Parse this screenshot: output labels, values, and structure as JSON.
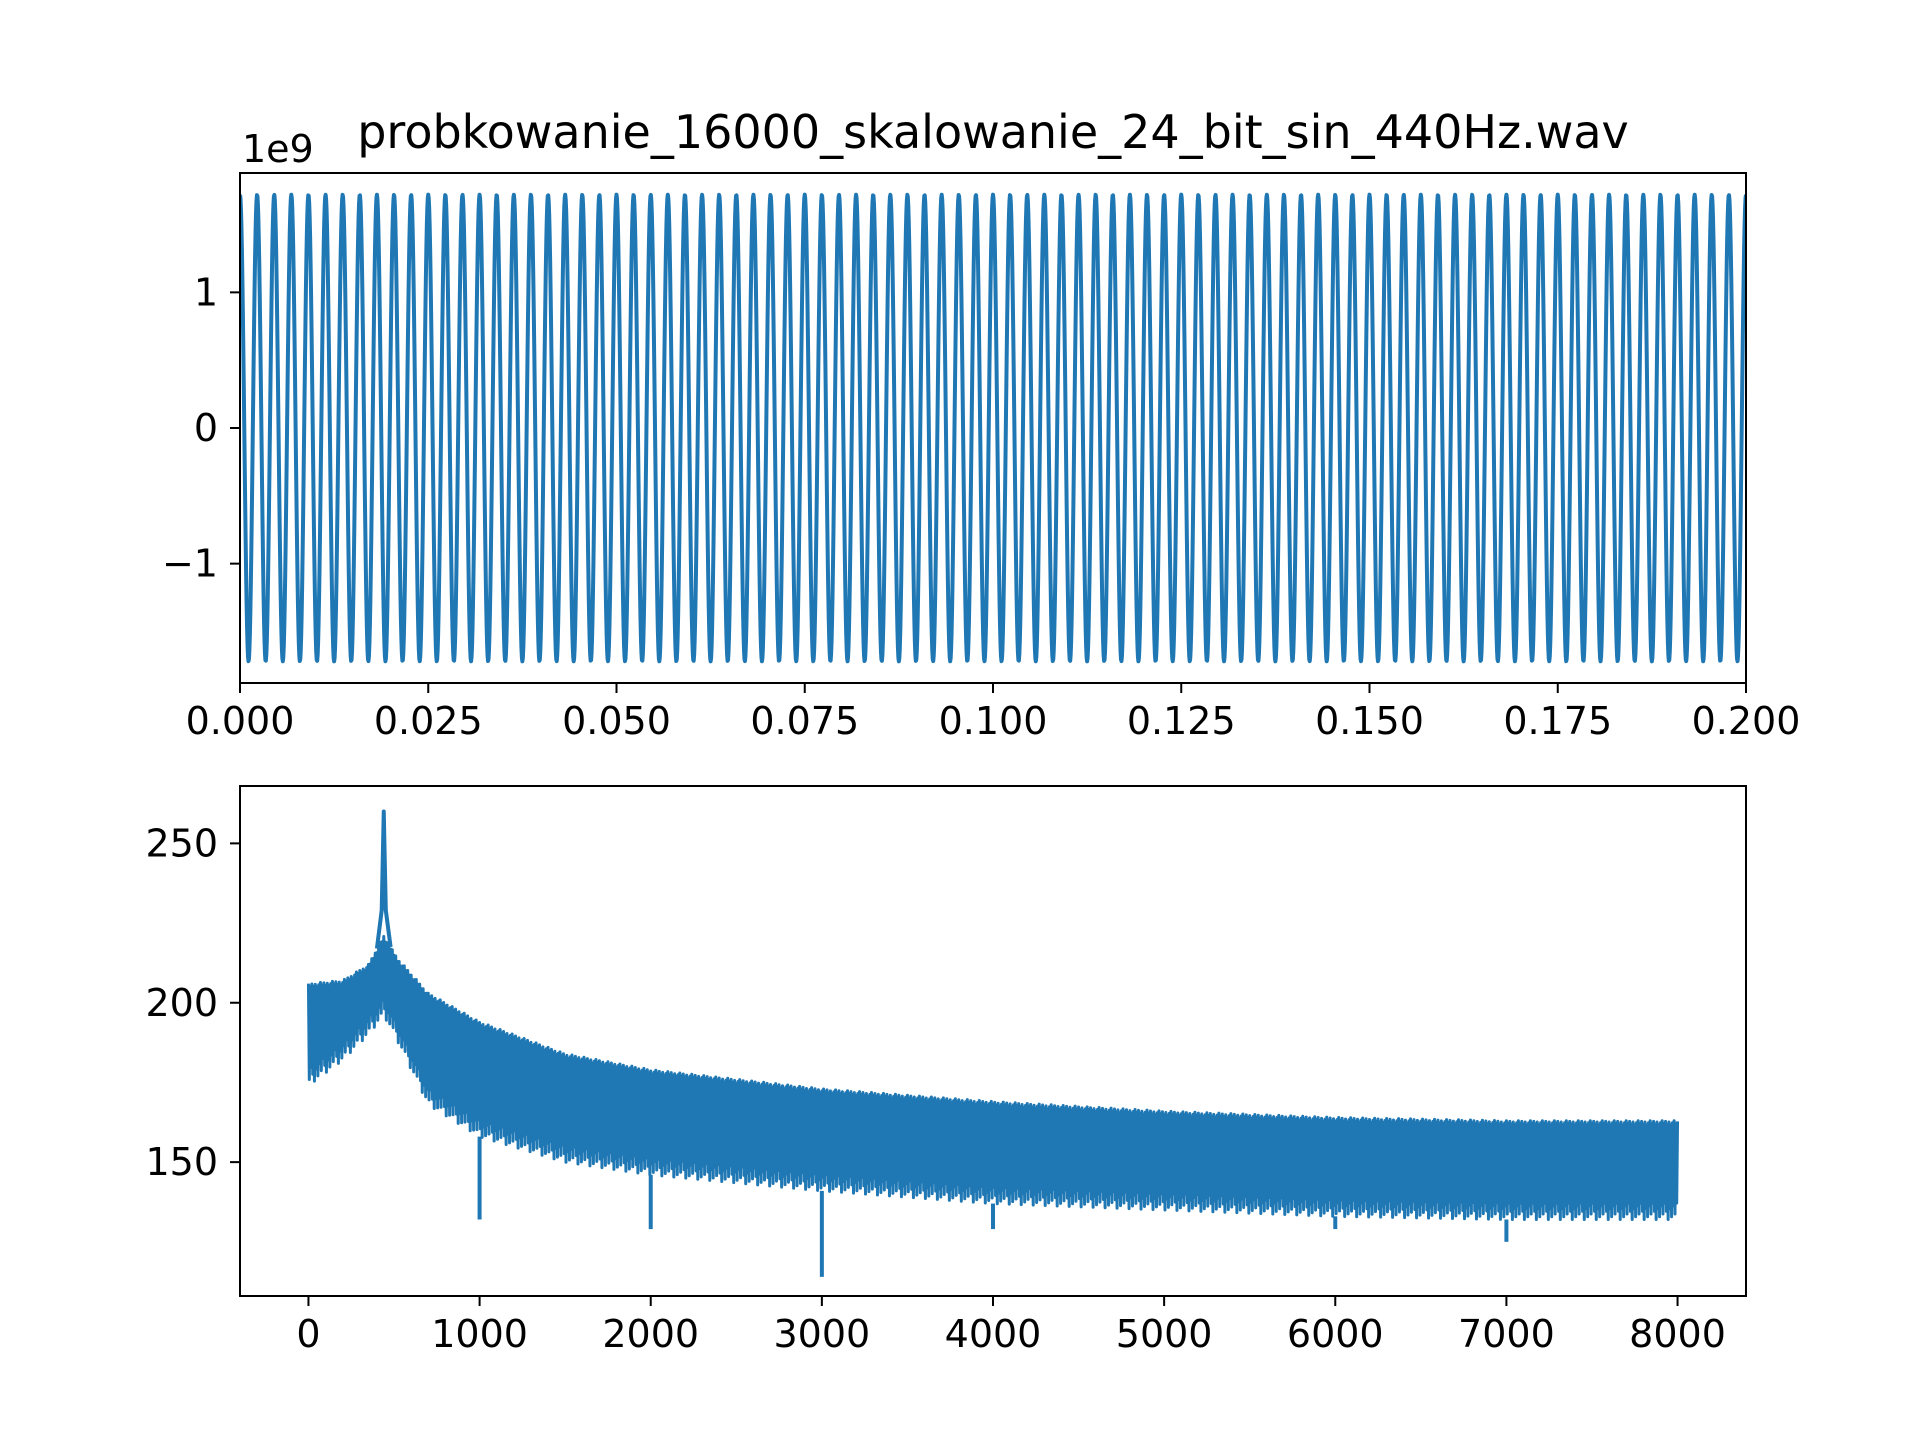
{
  "figure": {
    "title": "probkowanie_16000_skalowanie_24_bit_sin_440Hz.wav"
  },
  "colors": {
    "series": "#1f77b4",
    "axes": "#000000",
    "background": "#ffffff"
  },
  "chart_data": [
    {
      "type": "line",
      "title": "probkowanie_16000_skalowanie_24_bit_sin_440Hz.wav",
      "xlabel": "",
      "ylabel": "",
      "grid": false,
      "xlim": [
        0,
        0.2
      ],
      "ylim": [
        -1.88,
        1.88
      ],
      "y_offset_label": "1e9",
      "x_ticks": [
        {
          "value": 0.0,
          "label": "0.000"
        },
        {
          "value": 0.025,
          "label": "0.025"
        },
        {
          "value": 0.05,
          "label": "0.050"
        },
        {
          "value": 0.075,
          "label": "0.075"
        },
        {
          "value": 0.1,
          "label": "0.100"
        },
        {
          "value": 0.125,
          "label": "0.125"
        },
        {
          "value": 0.15,
          "label": "0.150"
        },
        {
          "value": 0.175,
          "label": "0.175"
        },
        {
          "value": 0.2,
          "label": "0.200"
        }
      ],
      "y_ticks": [
        {
          "value": -1,
          "label": "−1"
        },
        {
          "value": 0,
          "label": "0"
        },
        {
          "value": 1,
          "label": "1"
        }
      ],
      "signal": {
        "kind": "sine",
        "frequency_hz": 440,
        "sample_rate_hz": 16000,
        "amplitude": 1.72,
        "x_start": 0,
        "x_end": 0.2
      }
    },
    {
      "type": "line",
      "title": "",
      "xlabel": "",
      "ylabel": "",
      "grid": false,
      "xlim": [
        -400,
        8400
      ],
      "ylim": [
        108,
        268
      ],
      "x_ticks": [
        {
          "value": 0,
          "label": "0"
        },
        {
          "value": 1000,
          "label": "1000"
        },
        {
          "value": 2000,
          "label": "2000"
        },
        {
          "value": 3000,
          "label": "3000"
        },
        {
          "value": 4000,
          "label": "4000"
        },
        {
          "value": 5000,
          "label": "5000"
        },
        {
          "value": 6000,
          "label": "6000"
        },
        {
          "value": 7000,
          "label": "7000"
        },
        {
          "value": 8000,
          "label": "8000"
        }
      ],
      "y_ticks": [
        {
          "value": 150,
          "label": "150"
        },
        {
          "value": 200,
          "label": "200"
        },
        {
          "value": 250,
          "label": "250"
        }
      ],
      "spectrum": {
        "x_start": 0,
        "x_end": 8000,
        "step": 5,
        "peak_x": 440,
        "peak_y": 260,
        "upper_envelope": [
          [
            0,
            206
          ],
          [
            200,
            207
          ],
          [
            350,
            212
          ],
          [
            440,
            221
          ],
          [
            520,
            214
          ],
          [
            700,
            203
          ],
          [
            1000,
            194
          ],
          [
            1500,
            184
          ],
          [
            2000,
            179
          ],
          [
            3000,
            173
          ],
          [
            4000,
            169
          ],
          [
            5000,
            166
          ],
          [
            6000,
            164
          ],
          [
            7000,
            163
          ],
          [
            8000,
            163
          ]
        ],
        "lower_envelope": [
          [
            0,
            174
          ],
          [
            200,
            182
          ],
          [
            350,
            190
          ],
          [
            440,
            196
          ],
          [
            520,
            188
          ],
          [
            700,
            168
          ],
          [
            1000,
            158
          ],
          [
            1500,
            150
          ],
          [
            2000,
            146
          ],
          [
            3000,
            141
          ],
          [
            4000,
            137
          ],
          [
            5000,
            135
          ],
          [
            6000,
            133
          ],
          [
            7000,
            132
          ],
          [
            8000,
            132
          ]
        ],
        "dips": [
          {
            "x": 1000,
            "y": 132
          },
          {
            "x": 2000,
            "y": 129
          },
          {
            "x": 3000,
            "y": 114
          },
          {
            "x": 4000,
            "y": 129
          },
          {
            "x": 6000,
            "y": 129
          },
          {
            "x": 7000,
            "y": 125
          }
        ]
      }
    }
  ]
}
